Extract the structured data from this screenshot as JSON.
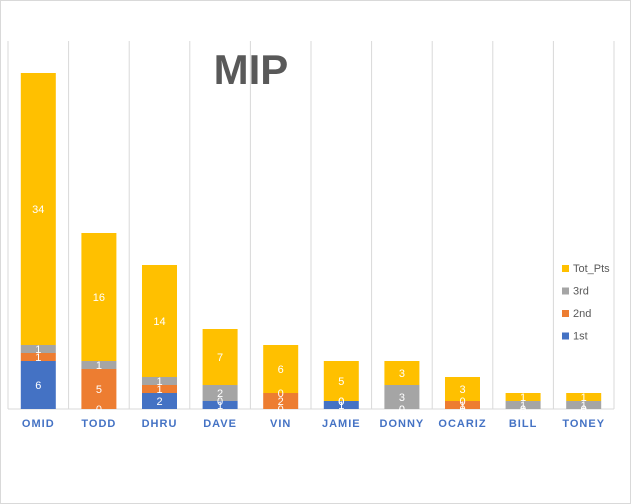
{
  "chart_data": {
    "type": "bar",
    "stacked": true,
    "title": "MIP",
    "xlabel": "",
    "ylabel": "",
    "grid": true,
    "legend_position": "right",
    "categories": [
      "OMID",
      "TODD",
      "DHRU",
      "DAVE",
      "VIN",
      "JAMIE",
      "DONNY",
      "OCARIZ",
      "BILL",
      "TONEY"
    ],
    "series": [
      {
        "name": "1st",
        "color": "#4472c4",
        "values": [
          6,
          0,
          2,
          1,
          0,
          1,
          0,
          0,
          0,
          0
        ]
      },
      {
        "name": "2nd",
        "color": "#ed7d31",
        "values": [
          1,
          5,
          1,
          0,
          2,
          0,
          0,
          1,
          0,
          0
        ]
      },
      {
        "name": "3rd",
        "color": "#a5a5a5",
        "values": [
          1,
          1,
          1,
          2,
          0,
          0,
          3,
          0,
          1,
          1
        ]
      },
      {
        "name": "Tot_Pts",
        "color": "#ffc000",
        "values": [
          34,
          16,
          14,
          7,
          6,
          5,
          3,
          3,
          1,
          1
        ]
      }
    ]
  }
}
